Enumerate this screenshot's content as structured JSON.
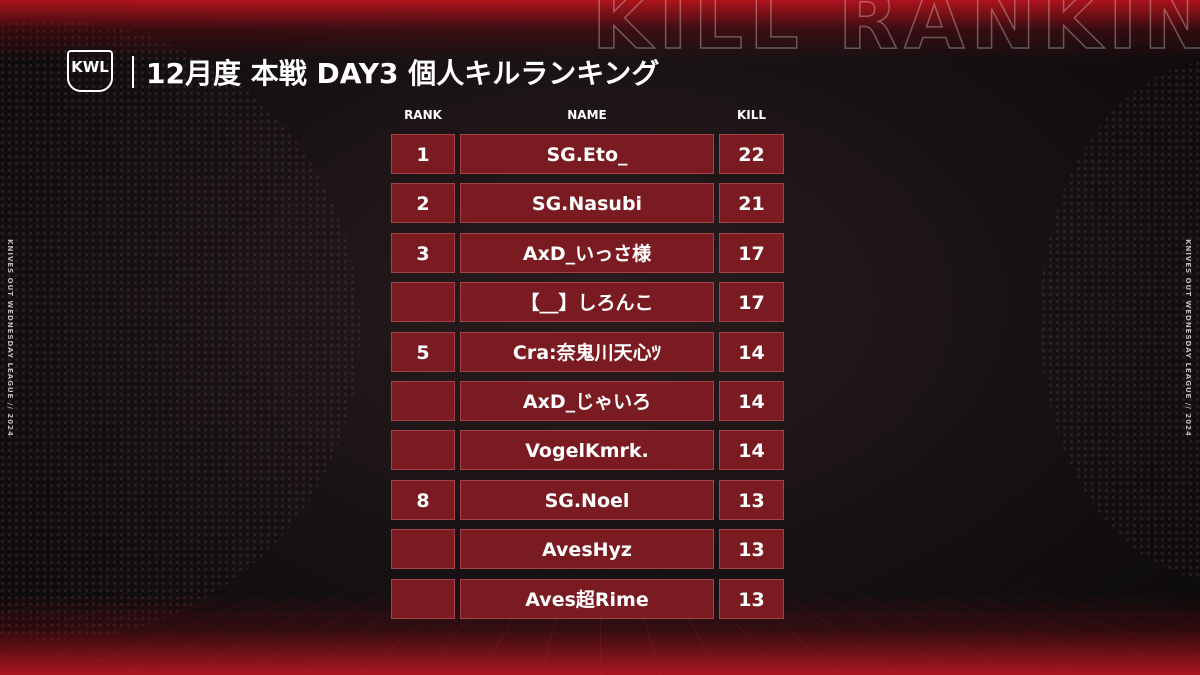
{
  "header": {
    "logo": "KWL",
    "title": "12月度 本戦 DAY3 個人キルランキング",
    "watermark": "KILL RANKING"
  },
  "side_text": {
    "left": "KNIVES OUT WEDNESDAY LEAGUE // 2024",
    "right": "KNIVES OUT WEDNESDAY LEAGUE // 2024"
  },
  "table": {
    "columns": [
      "RANK",
      "NAME",
      "KILL"
    ],
    "rows": [
      [
        1,
        "SG.Eto_",
        22
      ],
      [
        2,
        "SG.Nasubi",
        21
      ],
      [
        3,
        "AxD_いっさ様",
        17
      ],
      [
        null,
        "【__】しろんこ",
        17
      ],
      [
        5,
        "Cra:奈鬼川天心ﾂ",
        14
      ],
      [
        null,
        "AxD_じゃいろ",
        14
      ],
      [
        null,
        "VogelKmrk.",
        14
      ],
      [
        8,
        "SG.Noel",
        13
      ],
      [
        null,
        "AvesHyz",
        13
      ],
      [
        null,
        "Aves超Rime",
        13
      ]
    ]
  }
}
